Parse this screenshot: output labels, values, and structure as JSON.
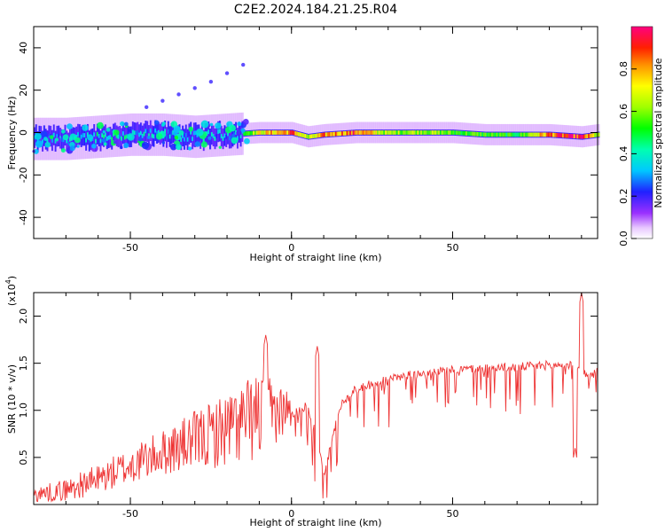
{
  "title": "C2E2.2024.184.21.25.R04",
  "chart_data": [
    {
      "type": "heatmap",
      "panel": "spectrogram",
      "xlabel": "Height of straight line (km)",
      "ylabel": "Frequency (Hz)",
      "xlim": [
        -80,
        95
      ],
      "ylim": [
        -50,
        50
      ],
      "x_ticks": [
        -50,
        0,
        50
      ],
      "y_ticks": [
        -40,
        -20,
        0,
        20,
        40
      ],
      "x_tick_labels": [
        "-50",
        "0",
        "50"
      ],
      "y_tick_labels": [
        "-40",
        "-20",
        "0",
        "20",
        "40"
      ],
      "colorbar": {
        "label": "Normalized spectral amplitude",
        "range": [
          0,
          1
        ],
        "ticks": [
          0.0,
          0.2,
          0.4,
          0.6,
          0.8
        ],
        "tick_labels": [
          "0.0",
          "0.2",
          "0.4",
          "0.6",
          "0.8"
        ]
      },
      "ridge": {
        "x": [
          -80,
          -70,
          -60,
          -50,
          -40,
          -30,
          -20,
          -10,
          0,
          5,
          10,
          20,
          30,
          40,
          50,
          60,
          70,
          80,
          90,
          95
        ],
        "freq": [
          -3,
          -3,
          -2,
          -1,
          -1,
          -2,
          -1,
          0,
          0,
          -2,
          -1,
          0,
          0,
          0,
          0,
          -1,
          -1,
          -1,
          -2,
          -1
        ],
        "amplitude": [
          0.3,
          0.35,
          0.4,
          0.4,
          0.35,
          0.35,
          0.35,
          0.7,
          0.85,
          0.6,
          0.8,
          0.85,
          0.6,
          0.65,
          0.55,
          0.55,
          0.5,
          0.85,
          0.9,
          0.6
        ]
      },
      "ridge_spread_hz": [
        {
          "x_range": [
            -80,
            -15
          ],
          "half_width": 7
        },
        {
          "x_range": [
            -15,
            95
          ],
          "half_width": 2
        }
      ],
      "echo_track": {
        "x": [
          -45,
          -40,
          -35,
          -30,
          -25,
          -20,
          -15
        ],
        "freq": [
          12,
          15,
          18,
          21,
          24,
          28,
          32
        ],
        "amplitude": 0.2
      }
    },
    {
      "type": "line",
      "panel": "snr",
      "xlabel": "Height of straight line (km)",
      "ylabel": "SNR (10 * v/v)",
      "scale_label": "(x10",
      "scale_exponent": "4",
      "xlim": [
        -80,
        95
      ],
      "ylim": [
        0,
        22500
      ],
      "x_ticks": [
        -50,
        0,
        50
      ],
      "y_ticks": [
        5000,
        10000,
        15000,
        20000
      ],
      "x_tick_labels": [
        "-50",
        "0",
        "50"
      ],
      "y_tick_labels": [
        "0.5",
        "1.0",
        "1.5",
        "2.0"
      ],
      "series": [
        {
          "color": "#ee3333",
          "envelope": {
            "x": [
              -80,
              -70,
              -60,
              -50,
              -40,
              -30,
              -20,
              -10,
              -5,
              0,
              5,
              8,
              10,
              15,
              20,
              25,
              30,
              40,
              50,
              60,
              70,
              80,
              87,
              90,
              92,
              95
            ],
            "y": [
              800,
              1200,
              2200,
              3500,
              4800,
              5800,
              6800,
              8000,
              8800,
              9500,
              10500,
              7000,
              3000,
              10500,
              12200,
              12800,
              13300,
              14000,
              14300,
              14500,
              14600,
              14800,
              14800,
              14500,
              13500,
              14300
            ]
          },
          "spikes": [
            {
              "x": -8,
              "y": 18000
            },
            {
              "x": 8,
              "y": 16800
            },
            {
              "x": 90,
              "y": 22500
            },
            {
              "x": 88,
              "y": 6000
            }
          ],
          "noise_amplitude": {
            "x": [
              -80,
              -40,
              -20,
              -10,
              0,
              20,
              50,
              80,
              95
            ],
            "y": [
              1000,
              3000,
              5000,
              6000,
              2500,
              2500,
              2000,
              2500,
              1500
            ]
          }
        }
      ]
    }
  ]
}
